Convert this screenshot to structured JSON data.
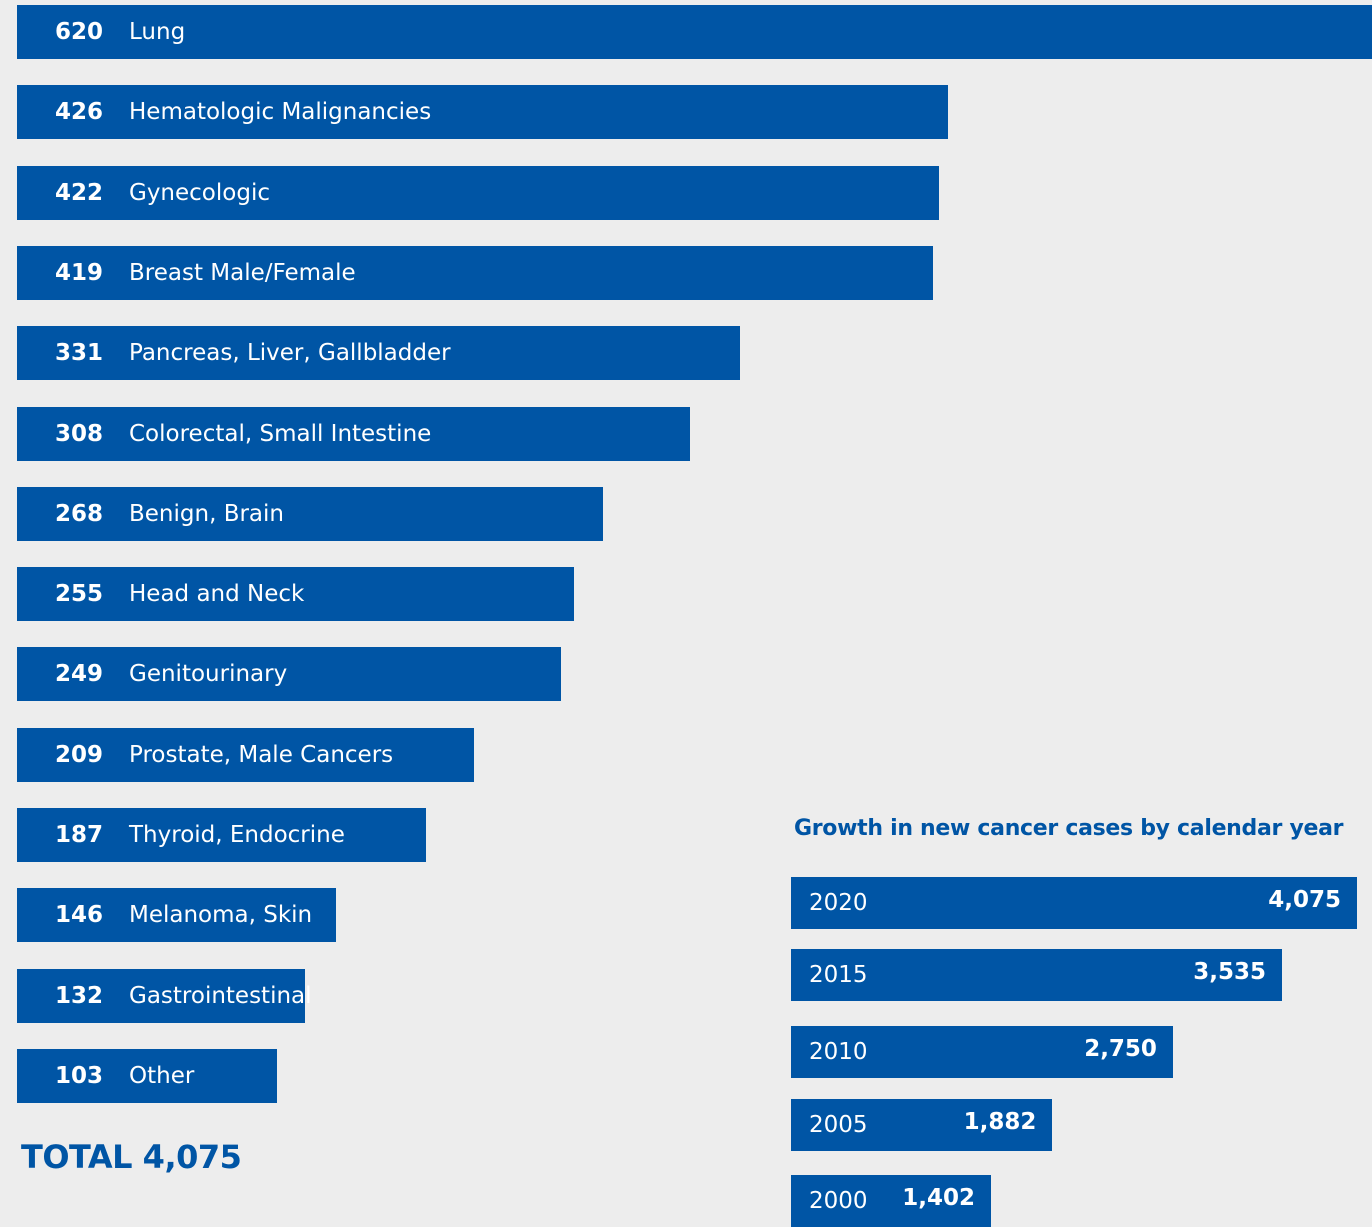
{
  "chart_data": [
    {
      "type": "bar",
      "orientation": "horizontal",
      "categories": [
        "Lung",
        "Hematologic Malignancies",
        "Gynecologic",
        "Breast Male/Female",
        "Pancreas, Liver, Gallbladder",
        "Colorectal, Small Intestine",
        "Benign, Brain",
        "Head and Neck",
        "Genitourinary",
        "Prostate, Male Cancers",
        "Thyroid, Endocrine",
        "Melanoma, Skin",
        "Gastrointestinal",
        "Other"
      ],
      "values": [
        620,
        426,
        422,
        419,
        331,
        308,
        268,
        255,
        249,
        209,
        187,
        146,
        132,
        103
      ],
      "total_label": "TOTAL 4,075"
    },
    {
      "type": "bar",
      "orientation": "horizontal",
      "title": "Growth in new cancer cases by calendar year",
      "categories": [
        "2020",
        "2015",
        "2010",
        "2005",
        "2000"
      ],
      "values": [
        4075,
        3535,
        2750,
        1882,
        1402
      ],
      "value_labels": [
        "4,075",
        "3,535",
        "2,750",
        "1,882",
        "1,402"
      ]
    }
  ],
  "colors": {
    "bar": "#0055a5",
    "background": "#ededed",
    "text_on_bar": "#ffffff"
  }
}
